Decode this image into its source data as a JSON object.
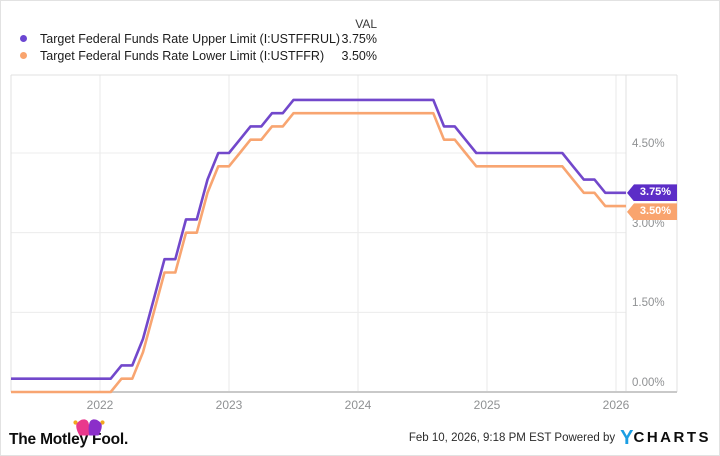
{
  "legend": {
    "val_header": "VAL",
    "items": [
      {
        "label": "Target Federal Funds Rate Upper Limit (I:USTFFRUL)",
        "value": "3.75%",
        "color": "#6b46d2"
      },
      {
        "label": "Target Federal Funds Rate Lower Limit (I:USTFFR)",
        "value": "3.50%",
        "color": "#f9a46e"
      }
    ]
  },
  "chart_data": {
    "type": "line",
    "title": "",
    "xlabel": "",
    "ylabel": "",
    "grid": true,
    "legend_position": "top-left",
    "x_ticks": [
      "2022",
      "2023",
      "2024",
      "2025",
      "2026"
    ],
    "y_ticks": [
      {
        "label": "4.50%",
        "value": 4.5
      },
      {
        "label": "3.00%",
        "value": 3.0
      },
      {
        "label": "1.50%",
        "value": 1.5
      },
      {
        "label": "0.00%",
        "value": 0.0
      }
    ],
    "ylim": [
      0,
      5.97
    ],
    "start_month": "2021-04",
    "end_month": "2026-02",
    "unit": "percent",
    "series": [
      {
        "name": "Target Federal Funds Rate Upper Limit (I:USTFFRUL)",
        "code": "I:USTFFRUL",
        "color": "#7248cb",
        "badge_color": "#5c2dc7",
        "badge_label": "3.75%",
        "values": [
          0.25,
          0.25,
          0.25,
          0.25,
          0.25,
          0.25,
          0.25,
          0.25,
          0.25,
          0.25,
          0.25,
          0.5,
          0.5,
          1.0,
          1.75,
          2.5,
          2.5,
          3.25,
          3.25,
          4.0,
          4.5,
          4.5,
          4.75,
          5.0,
          5.0,
          5.25,
          5.25,
          5.5,
          5.5,
          5.5,
          5.5,
          5.5,
          5.5,
          5.5,
          5.5,
          5.5,
          5.5,
          5.5,
          5.5,
          5.5,
          5.5,
          5.0,
          5.0,
          4.75,
          4.5,
          4.5,
          4.5,
          4.5,
          4.5,
          4.5,
          4.5,
          4.5,
          4.5,
          4.25,
          4.0,
          4.0,
          3.75,
          3.75,
          3.75
        ]
      },
      {
        "name": "Target Federal Funds Rate Lower Limit (I:USTFFR)",
        "code": "I:USTFFR",
        "color": "#f8a571",
        "badge_color": "#f9a46e",
        "badge_label": "3.50%",
        "values": [
          0.0,
          0.0,
          0.0,
          0.0,
          0.0,
          0.0,
          0.0,
          0.0,
          0.0,
          0.0,
          0.0,
          0.25,
          0.25,
          0.75,
          1.5,
          2.25,
          2.25,
          3.0,
          3.0,
          3.75,
          4.25,
          4.25,
          4.5,
          4.75,
          4.75,
          5.0,
          5.0,
          5.25,
          5.25,
          5.25,
          5.25,
          5.25,
          5.25,
          5.25,
          5.25,
          5.25,
          5.25,
          5.25,
          5.25,
          5.25,
          5.25,
          4.75,
          4.75,
          4.5,
          4.25,
          4.25,
          4.25,
          4.25,
          4.25,
          4.25,
          4.25,
          4.25,
          4.25,
          4.0,
          3.75,
          3.75,
          3.5,
          3.5,
          3.5
        ]
      }
    ]
  },
  "footer": {
    "brand": "The Motley Fool.",
    "timestamp": "Feb 10, 2026, 9:18 PM EST Powered by",
    "ycharts_y": "Y",
    "ycharts_rest": "CHARTS"
  }
}
